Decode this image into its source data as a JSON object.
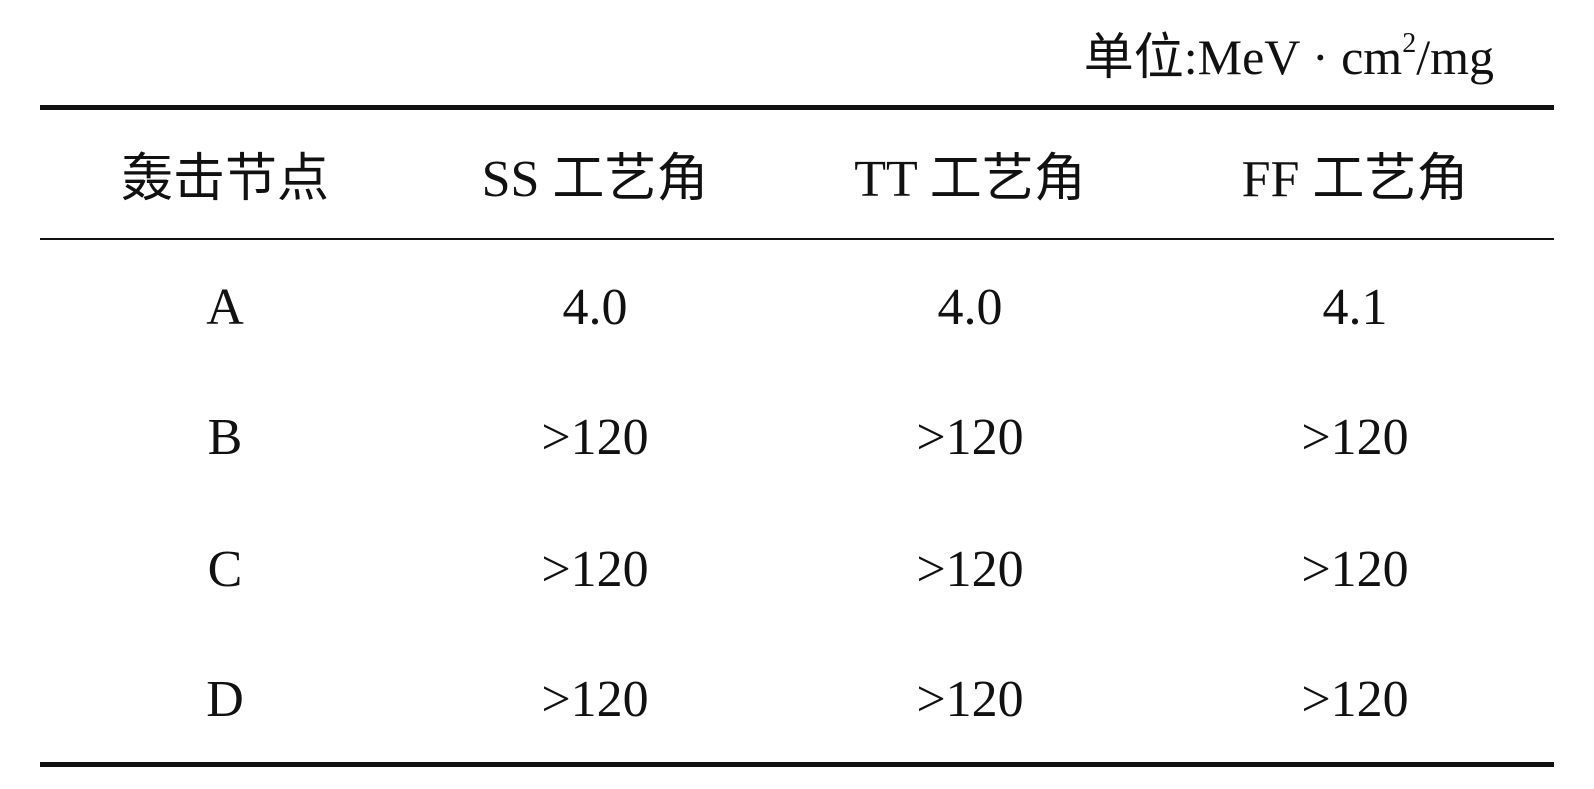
{
  "unit": {
    "label": "单位:",
    "unit_main": "MeV · cm",
    "unit_sup": "2",
    "unit_tail": "/mg"
  },
  "table": {
    "headers": [
      "轰击节点",
      "SS 工艺角",
      "TT 工艺角",
      "FF 工艺角"
    ],
    "rows": [
      [
        "A",
        "4.0",
        "4.0",
        "4.1"
      ],
      [
        "B",
        ">120",
        ">120",
        ">120"
      ],
      [
        "C",
        ">120",
        ">120",
        ">120"
      ],
      [
        "D",
        ">120",
        ">120",
        ">120"
      ]
    ]
  }
}
